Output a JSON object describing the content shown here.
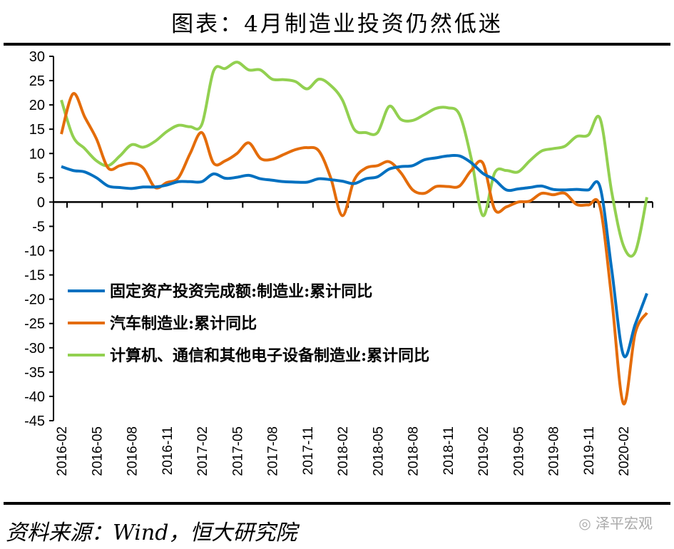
{
  "title": "图表：4月制造业投资仍然低迷",
  "source": "资料来源：Wind，恒大研究院",
  "watermark": "泽平宏观",
  "chart_data": {
    "type": "line",
    "title": "图表：4月制造业投资仍然低迷",
    "xlabel": "",
    "ylabel": "",
    "ylim": [
      -45,
      30
    ],
    "yticks": [
      "30",
      "25",
      "20",
      "15",
      "10",
      "5",
      "0",
      "-5",
      "-10",
      "-15",
      "-20",
      "-25",
      "-30",
      "-35",
      "-40",
      "-45"
    ],
    "xticks": [
      "2016-02",
      "2016-05",
      "2016-08",
      "2016-11",
      "2017-02",
      "2017-05",
      "2017-08",
      "2017-11",
      "2018-02",
      "2018-05",
      "2018-08",
      "2018-11",
      "2019-02",
      "2019-05",
      "2019-08",
      "2019-11",
      "2020-02"
    ],
    "x_start": "2016-02",
    "x_end": "2020-04",
    "grid": false,
    "legend_position": "left-center",
    "series": [
      {
        "name": "固定资产投资完成额:制造业:累计同比",
        "color": "#0070C0",
        "values": [
          7.3,
          6.5,
          6.2,
          5.0,
          3.3,
          3.0,
          2.8,
          3.1,
          3.1,
          3.5,
          4.2,
          4.2,
          4.2,
          5.8,
          4.9,
          5.1,
          5.5,
          4.8,
          4.5,
          4.2,
          4.1,
          4.1,
          4.8,
          4.6,
          4.3,
          3.8,
          4.8,
          5.2,
          6.8,
          7.3,
          7.5,
          8.7,
          9.1,
          9.5,
          9.5,
          8.1,
          5.9,
          4.6,
          2.5,
          2.7,
          3.0,
          3.3,
          2.6,
          2.5,
          2.6,
          2.5,
          3.1,
          -14.0,
          -31.5,
          -25.2,
          -18.8
        ]
      },
      {
        "name": "汽车制造业:累计同比",
        "color": "#E46C0A",
        "values": [
          14.0,
          22.3,
          17.5,
          13.0,
          7.0,
          7.5,
          8.0,
          7.0,
          3.0,
          4.0,
          5.0,
          10.0,
          14.3,
          8.0,
          8.5,
          10.0,
          12.2,
          9.0,
          8.8,
          9.8,
          10.8,
          11.2,
          10.5,
          5.0,
          -2.8,
          4.5,
          7.0,
          7.5,
          8.3,
          6.0,
          2.5,
          1.8,
          3.2,
          3.2,
          3.3,
          6.5,
          8.0,
          -1.5,
          -1.0,
          0.0,
          0.2,
          1.8,
          1.5,
          1.8,
          -0.5,
          -0.6,
          -1.0,
          -20.0,
          -41.5,
          -27.0,
          -22.8
        ]
      },
      {
        "name": "计算机、通信和其他电子设备制造业:累计同比",
        "color": "#92D050",
        "values": [
          21.0,
          13.5,
          11.0,
          8.5,
          7.5,
          9.5,
          11.8,
          11.3,
          12.5,
          14.5,
          15.8,
          15.5,
          16.0,
          27.0,
          27.5,
          28.8,
          27.2,
          27.2,
          25.3,
          25.2,
          24.8,
          23.3,
          25.3,
          24.0,
          21.0,
          15.0,
          14.3,
          14.3,
          19.7,
          17.0,
          16.8,
          18.0,
          19.3,
          19.4,
          18.0,
          9.0,
          -2.8,
          6.0,
          6.5,
          6.2,
          8.5,
          10.5,
          11.0,
          11.5,
          13.5,
          13.8,
          17.2,
          2.0,
          -9.0,
          -10.3,
          1.0
        ]
      }
    ]
  }
}
